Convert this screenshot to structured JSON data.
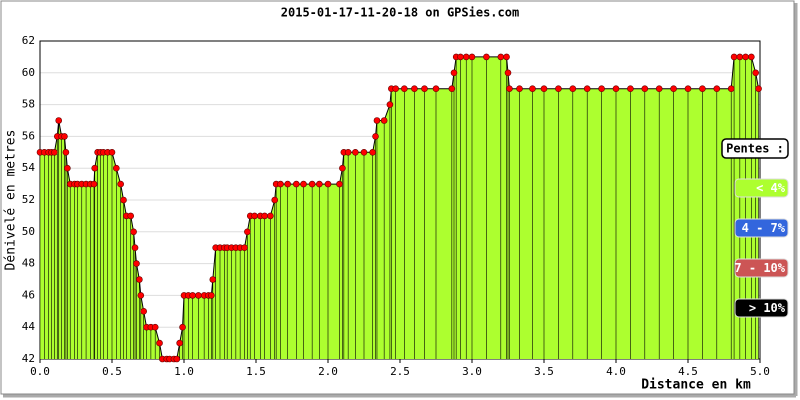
{
  "chart_data": {
    "type": "area",
    "title": "2015-01-17-11-20-18 on GPSies.com",
    "x_label": "Distance en km",
    "y_label": "Dénivelé en metres",
    "fill_color": "#adff2f",
    "line_color": "#000000",
    "marker_color": "#ff0000",
    "grid": true,
    "xlim": [
      0,
      5
    ],
    "ylim": [
      42,
      62
    ],
    "xticks": [
      {
        "value": 0,
        "label": "0.0"
      },
      {
        "value": 0.5,
        "label": "0.5"
      },
      {
        "value": 1,
        "label": "1.0"
      },
      {
        "value": 1.5,
        "label": "1.5"
      },
      {
        "value": 2,
        "label": "2.0"
      },
      {
        "value": 2.5,
        "label": "2.5"
      },
      {
        "value": 3,
        "label": "3.0"
      },
      {
        "value": 3.5,
        "label": "3.5"
      },
      {
        "value": 4,
        "label": "4.0"
      },
      {
        "value": 4.5,
        "label": "4.5"
      },
      {
        "value": 5,
        "label": "5.0"
      }
    ],
    "yticks": [
      42,
      44,
      46,
      48,
      50,
      52,
      54,
      56,
      58,
      60,
      62
    ],
    "x": [
      0,
      0.03,
      0.06,
      0.08,
      0.1,
      0.12,
      0.13,
      0.15,
      0.17,
      0.18,
      0.19,
      0.21,
      0.24,
      0.26,
      0.29,
      0.32,
      0.35,
      0.375,
      0.38,
      0.4,
      0.42,
      0.44,
      0.47,
      0.5,
      0.53,
      0.56,
      0.58,
      0.6,
      0.63,
      0.65,
      0.66,
      0.67,
      0.69,
      0.7,
      0.72,
      0.74,
      0.77,
      0.8,
      0.83,
      0.85,
      0.88,
      0.9,
      0.93,
      0.95,
      0.97,
      0.99,
      1.0,
      1.03,
      1.06,
      1.1,
      1.14,
      1.17,
      1.19,
      1.2,
      1.22,
      1.25,
      1.28,
      1.3,
      1.33,
      1.36,
      1.39,
      1.42,
      1.44,
      1.46,
      1.49,
      1.53,
      1.56,
      1.6,
      1.63,
      1.64,
      1.67,
      1.72,
      1.78,
      1.83,
      1.89,
      1.94,
      2.0,
      2.08,
      2.1,
      2.11,
      2.14,
      2.19,
      2.25,
      2.31,
      2.33,
      2.34,
      2.39,
      2.43,
      2.44,
      2.47,
      2.53,
      2.6,
      2.67,
      2.75,
      2.86,
      2.875,
      2.89,
      2.92,
      2.96,
      3.0,
      3.1,
      3.2,
      3.24,
      3.25,
      3.26,
      3.33,
      3.42,
      3.5,
      3.6,
      3.7,
      3.8,
      3.9,
      4.0,
      4.1,
      4.2,
      4.3,
      4.4,
      4.5,
      4.6,
      4.7,
      4.8,
      4.82,
      4.86,
      4.9,
      4.94,
      4.97,
      4.99
    ],
    "values": [
      55,
      55,
      55,
      55,
      55,
      56,
      57,
      56,
      56,
      55,
      54,
      53,
      53,
      53,
      53,
      53,
      53,
      53,
      54,
      55,
      55,
      55,
      55,
      55,
      54,
      53,
      52,
      51,
      51,
      50,
      49,
      48,
      47,
      46,
      45,
      44,
      44,
      44,
      43,
      42,
      42,
      42,
      42,
      42,
      43,
      44,
      46,
      46,
      46,
      46,
      46,
      46,
      46,
      47,
      49,
      49,
      49,
      49,
      49,
      49,
      49,
      49,
      50,
      51,
      51,
      51,
      51,
      51,
      52,
      53,
      53,
      53,
      53,
      53,
      53,
      53,
      53,
      53,
      54,
      55,
      55,
      55,
      55,
      55,
      56,
      57,
      57,
      58,
      59,
      59,
      59,
      59,
      59,
      59,
      59,
      60,
      61,
      61,
      61,
      61,
      61,
      61,
      61,
      60,
      59,
      59,
      59,
      59,
      59,
      59,
      59,
      59,
      59,
      59,
      59,
      59,
      59,
      59,
      59,
      59,
      59,
      61,
      61,
      61,
      61,
      60,
      59
    ],
    "legend": {
      "title": "Pentes :",
      "items": [
        {
          "label": "< 4%",
          "color": "#adff2f",
          "text_color": "#ffffff"
        },
        {
          "label": "4 - 7%",
          "color": "#3366dd",
          "text_color": "#ffffff"
        },
        {
          "label": "7 - 10%",
          "color": "#cc5555",
          "text_color": "#ffffff"
        },
        {
          "label": "> 10%",
          "color": "#000000",
          "text_color": "#ffffff"
        }
      ]
    }
  }
}
